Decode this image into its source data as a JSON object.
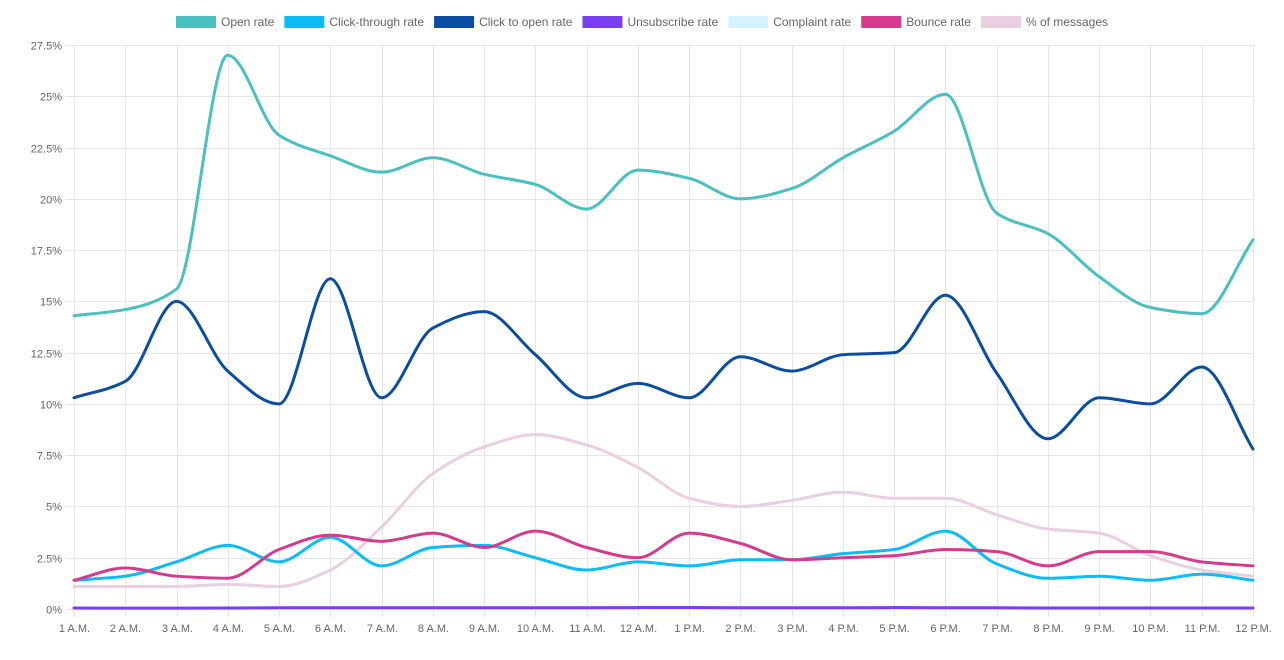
{
  "chart_data": {
    "type": "line",
    "title": "",
    "xlabel": "",
    "ylabel": "",
    "ylim": [
      0,
      27.5
    ],
    "y_ticks": [
      "0%",
      "2.5%",
      "5%",
      "7.5%",
      "10%",
      "12.5%",
      "15%",
      "17.5%",
      "20%",
      "22.5%",
      "25%",
      "27.5%"
    ],
    "y_tick_values": [
      0,
      2.5,
      5,
      7.5,
      10,
      12.5,
      15,
      17.5,
      20,
      22.5,
      25,
      27.5
    ],
    "categories": [
      "1 A.M.",
      "2 A.M.",
      "3 A.M.",
      "4 A.M.",
      "5 A.M.",
      "6 A.M.",
      "7 A.M.",
      "8 A.M.",
      "9 A.M.",
      "10 A.M.",
      "11 A.M.",
      "12 A.M.",
      "1 P.M.",
      "2 P.M.",
      "3 P.M.",
      "4 P.M.",
      "5 P.M.",
      "6 P.M.",
      "7 P.M.",
      "8 P.M.",
      "9 P.M.",
      "10 P.M.",
      "11 P.M.",
      "12 P.M."
    ],
    "legend_position": "top-center",
    "grid": true,
    "series": [
      {
        "name": "Open rate",
        "color": "#4bc0c0",
        "values": [
          14.3,
          14.6,
          15.6,
          27.0,
          23.1,
          22.1,
          21.3,
          22.0,
          21.2,
          20.7,
          19.5,
          21.4,
          21.0,
          20.0,
          20.5,
          22.0,
          23.3,
          25.1,
          19.3,
          18.3,
          16.2,
          14.7,
          14.4,
          18.0
        ]
      },
      {
        "name": "Click-through rate",
        "color": "#0bbcf7",
        "values": [
          1.4,
          1.6,
          2.3,
          3.1,
          2.3,
          3.5,
          2.1,
          3.0,
          3.1,
          2.5,
          1.9,
          2.3,
          2.1,
          2.4,
          2.4,
          2.7,
          2.9,
          3.8,
          2.2,
          1.5,
          1.6,
          1.4,
          1.7,
          1.4
        ]
      },
      {
        "name": "Click to open rate",
        "color": "#0b4da2",
        "values": [
          10.3,
          11.1,
          15.0,
          11.6,
          10.0,
          16.1,
          10.3,
          13.7,
          14.5,
          12.4,
          10.3,
          11.0,
          10.3,
          12.3,
          11.6,
          12.4,
          12.5,
          15.3,
          11.5,
          8.3,
          10.3,
          10.0,
          11.8,
          7.8
        ]
      },
      {
        "name": "Unsubscribe rate",
        "color": "#7b3ff2",
        "values": [
          0.05,
          0.04,
          0.04,
          0.05,
          0.06,
          0.06,
          0.06,
          0.06,
          0.06,
          0.06,
          0.06,
          0.07,
          0.07,
          0.06,
          0.06,
          0.06,
          0.07,
          0.06,
          0.06,
          0.05,
          0.05,
          0.05,
          0.05,
          0.05
        ]
      },
      {
        "name": "Complaint rate",
        "color": "#d6f3fd",
        "values": [
          0.01,
          0.01,
          0.01,
          0.01,
          0.01,
          0.01,
          0.01,
          0.01,
          0.01,
          0.01,
          0.01,
          0.01,
          0.01,
          0.01,
          0.01,
          0.01,
          0.01,
          0.01,
          0.01,
          0.01,
          0.01,
          0.01,
          0.01,
          0.01
        ]
      },
      {
        "name": "Bounce rate",
        "color": "#d63a8d",
        "values": [
          1.4,
          2.0,
          1.6,
          1.5,
          2.9,
          3.6,
          3.3,
          3.7,
          3.0,
          3.8,
          3.0,
          2.5,
          3.7,
          3.2,
          2.4,
          2.5,
          2.6,
          2.9,
          2.8,
          2.1,
          2.8,
          2.8,
          2.3,
          2.1
        ]
      },
      {
        "name": "% of messages",
        "color": "#e9cfdf",
        "values": [
          1.1,
          1.1,
          1.1,
          1.2,
          1.1,
          1.9,
          4.0,
          6.6,
          7.9,
          8.5,
          8.0,
          6.9,
          5.4,
          5.0,
          5.3,
          5.7,
          5.4,
          5.4,
          4.6,
          3.9,
          3.7,
          2.6,
          1.9,
          1.6
        ]
      }
    ]
  }
}
